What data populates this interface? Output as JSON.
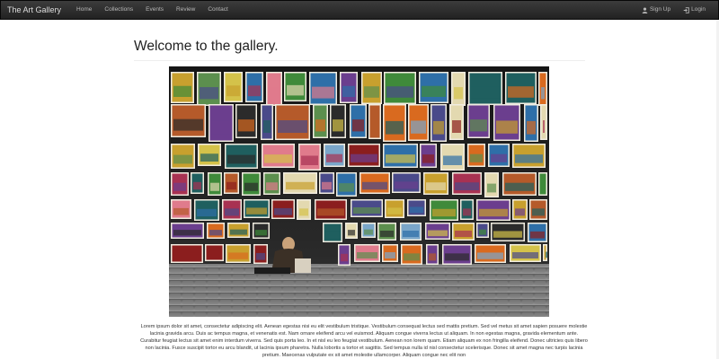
{
  "navbar": {
    "brand": "The Art Gallery",
    "links": [
      "Home",
      "Collections",
      "Events",
      "Review",
      "Contact"
    ],
    "signup_label": "Sign Up",
    "login_label": "Login"
  },
  "main": {
    "title": "Welcome to the gallery.",
    "hero_alt": "",
    "body_text": "Lorem ipsum dolor sit amet, consectetur adipiscing elit. Aenean egestas nisi eu elit vestibulum tristique. Vestibulum consequat lectus sed mattis pretium. Sed vel metus sit amet sapien posuere molestie lacinia gravida arcu. Duis ac tempus magna, et venenatis est. Nam ornare eleifend arcu vel euismod. Aliquam congue viverra lectus ut aliquam. In non egestas magna, gravida elementum ante. Curabitur feugiat lectus sit amet enim interdum viverra. Sed quis porta leo. In et nisl eu leo feugiat vestibulum. Aenean non lorem quam. Etiam aliquam ex non fringilla eleifend. Donec ultricies quis libero non lacinia. Fusce suscipit tortor eu arcu blandit, ut lacinia ipsum pharetra. Nulla lobortis a tortor et sagittis. Sed tempus nulla id nisl consectetur scelerisque. Donec sit amet magna nec turpis lacinia pretium. Maecenas vulputate ex sit amet molestie ullamcorper. Aliquam congue nec elit non"
  },
  "colors": {
    "navbar_bg": "#222222",
    "brand_text": "#dddddd",
    "nav_text": "#b8b8b8"
  }
}
